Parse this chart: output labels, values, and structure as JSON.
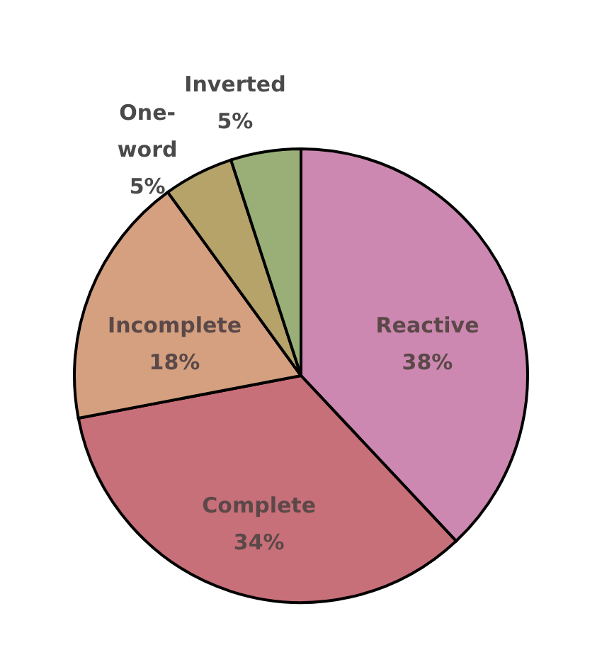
{
  "chart_data": {
    "type": "pie",
    "categories": [
      "Reactive",
      "Complete",
      "Incomplete",
      "One-word",
      "Inverted"
    ],
    "values": [
      38,
      34,
      18,
      5,
      5
    ],
    "value_labels": [
      "38%",
      "34%",
      "18%",
      "5%",
      "5%"
    ],
    "colors": [
      "#cc88b0",
      "#c8707a",
      "#d4a080",
      "#b5a36a",
      "#9aaf78"
    ]
  }
}
